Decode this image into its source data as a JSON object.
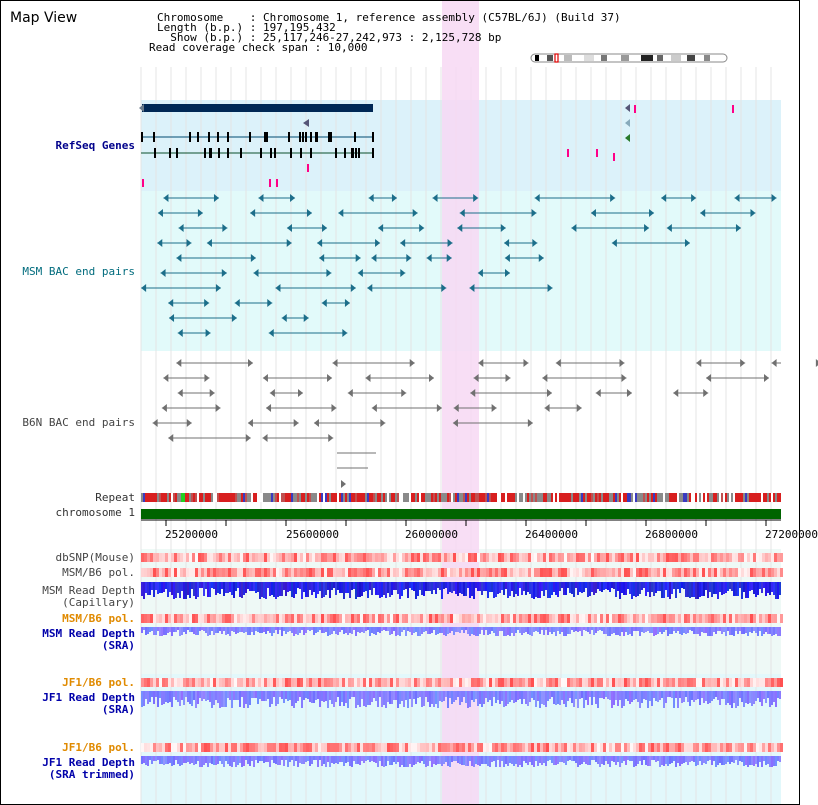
{
  "header": {
    "title": "Map View",
    "chromosome_line": "Chromosome    : Chromosome 1, reference assembly (C57BL/6J) (Build 37)",
    "length_line": "Length (b.p.) : 197,195,432",
    "show_line": "  Show (b.p.) : 25,117,246-27,242,973 : 2,125,728 bp",
    "coverage_line": "Read coverage check span : 10,000"
  },
  "tracks": {
    "refseq": "RefSeq Genes",
    "msm_bac": "MSM BAC end pairs",
    "b6n_bac": "B6N BAC end pairs",
    "repeat": "Repeat",
    "chromosome": "chromosome 1",
    "dbsnp": "dbSNP(Mouse)",
    "msm_b6_pol_1": "MSM/B6 pol.",
    "msm_depth_cap_1": "MSM Read Depth",
    "msm_depth_cap_2": "(Capillary)",
    "msm_b6_pol_2": "MSM/B6 pol.",
    "msm_depth_sra_1": "MSM Read Depth",
    "msm_depth_sra_2": "(SRA)",
    "jf1_b6_pol_1": "JF1/B6 pol.",
    "jf1_depth_1": "JF1 Read Depth",
    "jf1_depth_2": "(SRA)",
    "jf1_b6_pol_2": "JF1/B6 pol.",
    "jf1_trim_1": "JF1 Read Depth",
    "jf1_trim_2": "(SRA trimmed)"
  },
  "axis": {
    "ticks": [
      "25200000",
      "25600000",
      "26000000",
      "26400000",
      "26800000",
      "27200000"
    ]
  },
  "colors": {
    "refseq_bg": "#dcf2fa",
    "msm_bg": "#e2fafa",
    "highlight": "#f7d8f3",
    "gene": "#002855",
    "msm_bac": "#1c6e8a",
    "b6n_bac": "#707070",
    "chromosome": "#006400",
    "depth": "#1010e0"
  }
}
